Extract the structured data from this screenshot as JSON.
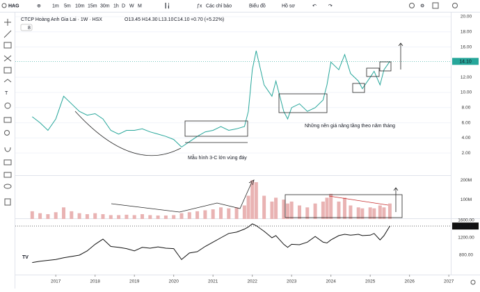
{
  "toolbar": {
    "symbol": "HAG",
    "intervals": [
      "1m",
      "5m",
      "10m",
      "15m",
      "30m",
      "1h",
      "D",
      "W",
      "M"
    ],
    "buttons": [
      "Các chỉ báo",
      "Biểu đồ",
      "Hồ sơ"
    ]
  },
  "legend": {
    "name": "CTCP Hoàng Anh Gia Lai · 1W · HSX",
    "open": "O13.45",
    "high": "H14.30",
    "low": "L13.10",
    "close": "C14.10",
    "change": "+0.70 (+5.22%)",
    "volume_toggle": "8"
  },
  "annotations": [
    "Những nền giá nâng tầng theo năm tháng",
    "Mẫu hình 3-C lớn vùng đáy"
  ],
  "chart_data": [
    {
      "type": "line",
      "color": "#26a69a",
      "grid": true,
      "last_label": "14.10",
      "x": [
        2016.4,
        2016.6,
        2016.8,
        2017.0,
        2017.2,
        2017.4,
        2017.6,
        2017.8,
        2018.0,
        2018.2,
        2018.4,
        2018.6,
        2018.8,
        2019.0,
        2019.2,
        2019.4,
        2019.6,
        2019.8,
        2020.0,
        2020.2,
        2020.4,
        2020.6,
        2020.8,
        2021.0,
        2021.2,
        2021.4,
        2021.6,
        2021.8,
        2021.9,
        2022.0,
        2022.1,
        2022.3,
        2022.5,
        2022.6,
        2022.8,
        2022.9,
        2023.0,
        2023.2,
        2023.4,
        2023.6,
        2023.8,
        2023.9,
        2024.0,
        2024.2,
        2024.35,
        2024.5,
        2024.7,
        2024.8,
        2025.0,
        2025.1,
        2025.25,
        2025.35,
        2025.5
      ],
      "values": [
        6.8,
        6.0,
        5.0,
        6.5,
        9.5,
        8.5,
        7.5,
        7.0,
        7.2,
        6.5,
        5.0,
        4.5,
        5.0,
        5.0,
        5.2,
        4.8,
        4.5,
        4.2,
        3.8,
        2.8,
        3.5,
        4.2,
        4.8,
        5.0,
        5.5,
        5.0,
        5.2,
        5.5,
        7.5,
        13.0,
        15.5,
        11.0,
        9.5,
        11.5,
        7.5,
        6.5,
        8.0,
        8.5,
        7.5,
        8.0,
        9.0,
        11.0,
        14.0,
        13.0,
        15.0,
        12.5,
        11.5,
        10.5,
        12.0,
        12.8,
        11.0,
        13.0,
        14.1
      ],
      "xlim": [
        2015.97,
        2027.05
      ],
      "ylim": [
        -0.92,
        20.55
      ],
      "yticks": [
        {
          "value": 2,
          "label": "2.00"
        },
        {
          "value": 4,
          "label": "4.00"
        },
        {
          "value": 6,
          "label": "6.00"
        },
        {
          "value": 8,
          "label": "8.00"
        },
        {
          "value": 10,
          "label": "10.00"
        },
        {
          "value": 12,
          "label": "12.00"
        },
        {
          "value": 16,
          "label": "16.00"
        },
        {
          "value": 18,
          "label": "18.00"
        },
        {
          "value": 20,
          "label": "20.00"
        }
      ]
    },
    {
      "type": "bar",
      "color": "#e9b3b3",
      "x": [
        2016.4,
        2016.6,
        2016.8,
        2017.0,
        2017.2,
        2017.4,
        2017.6,
        2017.8,
        2018.0,
        2018.2,
        2018.4,
        2018.6,
        2018.8,
        2019.0,
        2019.2,
        2019.4,
        2019.6,
        2019.8,
        2020.0,
        2020.2,
        2020.4,
        2020.6,
        2020.8,
        2021.0,
        2021.2,
        2021.4,
        2021.6,
        2021.8,
        2021.9,
        2022.0,
        2022.1,
        2022.3,
        2022.5,
        2022.6,
        2022.8,
        2022.9,
        2023.0,
        2023.2,
        2023.4,
        2023.6,
        2023.8,
        2023.9,
        2024.0,
        2024.2,
        2024.35,
        2024.5,
        2024.7,
        2024.8,
        2025.0,
        2025.1,
        2025.25,
        2025.35,
        2025.5
      ],
      "values": [
        40,
        30,
        25,
        35,
        60,
        40,
        30,
        25,
        30,
        25,
        20,
        20,
        22,
        20,
        25,
        20,
        18,
        18,
        20,
        30,
        35,
        40,
        45,
        50,
        60,
        55,
        60,
        70,
        120,
        200,
        190,
        120,
        90,
        110,
        100,
        80,
        90,
        70,
        60,
        80,
        90,
        110,
        130,
        90,
        110,
        70,
        60,
        55,
        60,
        55,
        70,
        60,
        80
      ],
      "xlim": [
        2015.97,
        2027.05
      ],
      "ylim": [
        0,
        221
      ],
      "yticks": [
        {
          "value": 100,
          "label": "100M"
        },
        {
          "value": 200,
          "label": "200M"
        }
      ]
    },
    {
      "type": "line",
      "color": "#111111",
      "x": [
        2016.4,
        2016.6,
        2016.8,
        2017.0,
        2017.2,
        2017.4,
        2017.6,
        2017.8,
        2018.0,
        2018.2,
        2018.4,
        2018.6,
        2018.8,
        2019.0,
        2019.2,
        2019.4,
        2019.6,
        2019.8,
        2020.0,
        2020.2,
        2020.4,
        2020.6,
        2020.8,
        2021.0,
        2021.2,
        2021.4,
        2021.6,
        2021.8,
        2021.9,
        2022.0,
        2022.1,
        2022.3,
        2022.5,
        2022.6,
        2022.8,
        2022.9,
        2023.0,
        2023.2,
        2023.4,
        2023.6,
        2023.8,
        2023.9,
        2024.0,
        2024.2,
        2024.35,
        2024.5,
        2024.7,
        2024.8,
        2025.0,
        2025.1,
        2025.25,
        2025.35,
        2025.5
      ],
      "values": [
        630,
        660,
        680,
        700,
        740,
        770,
        800,
        900,
        1050,
        1170,
        1000,
        980,
        950,
        900,
        980,
        960,
        990,
        960,
        950,
        700,
        850,
        880,
        1000,
        1100,
        1200,
        1300,
        1330,
        1400,
        1450,
        1520,
        1480,
        1350,
        1200,
        1250,
        1050,
        980,
        1050,
        1040,
        1100,
        1230,
        1100,
        1080,
        1150,
        1250,
        1280,
        1260,
        1280,
        1250,
        1260,
        1300,
        1150,
        1250,
        1470.42
      ],
      "xlim": [
        2015.97,
        2027.05
      ],
      "ylim": [
        592,
        1632
      ],
      "yticks": [
        {
          "value": 800,
          "label": "800.00"
        },
        {
          "value": 1200,
          "label": "1200.00"
        },
        {
          "value": 1600,
          "label": "1600.00"
        }
      ],
      "xticks": [
        2017,
        2018,
        2019,
        2020,
        2021,
        2022,
        2023,
        2024,
        2025,
        2026,
        2027
      ]
    }
  ]
}
